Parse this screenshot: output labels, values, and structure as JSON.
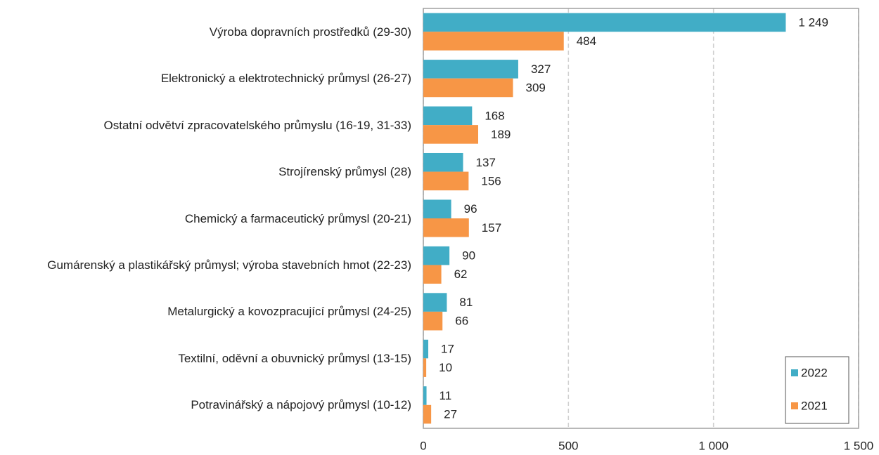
{
  "chart_data": {
    "type": "barh",
    "categories": [
      "Výroba dopravních prostředků (29-30)",
      "Elektronický a elektrotechnický průmysl (26-27)",
      "Ostatní odvětví zpracovatelského průmyslu (16-19, 31-33)",
      "Strojírenský průmysl (28)",
      "Chemický a farmaceutický průmysl (20-21)",
      "Gumárenský a plastikářský průmysl; výroba stavebních hmot (22-23)",
      "Metalurgický a kovozpracující průmysl (24-25)",
      "Textilní, oděvní a obuvnický průmysl (13-15)",
      "Potravinářský a nápojový průmysl (10-12)"
    ],
    "series": [
      {
        "name": "2022",
        "color": "#41adc6",
        "values": [
          1249,
          327,
          168,
          137,
          96,
          90,
          81,
          17,
          11
        ],
        "value_labels": [
          "1 249",
          "327",
          "168",
          "137",
          "96",
          "90",
          "81",
          "17",
          "11"
        ]
      },
      {
        "name": "2021",
        "color": "#f79646",
        "values": [
          484,
          309,
          189,
          156,
          157,
          62,
          66,
          10,
          27
        ]
      }
    ],
    "xlim": [
      0,
      1500
    ],
    "xticks": [
      0,
      500,
      {
        "value": 1000,
        "label": "1 000"
      },
      {
        "value": 1500,
        "label": "1 500"
      }
    ],
    "grid": true,
    "legend": "lower right"
  }
}
